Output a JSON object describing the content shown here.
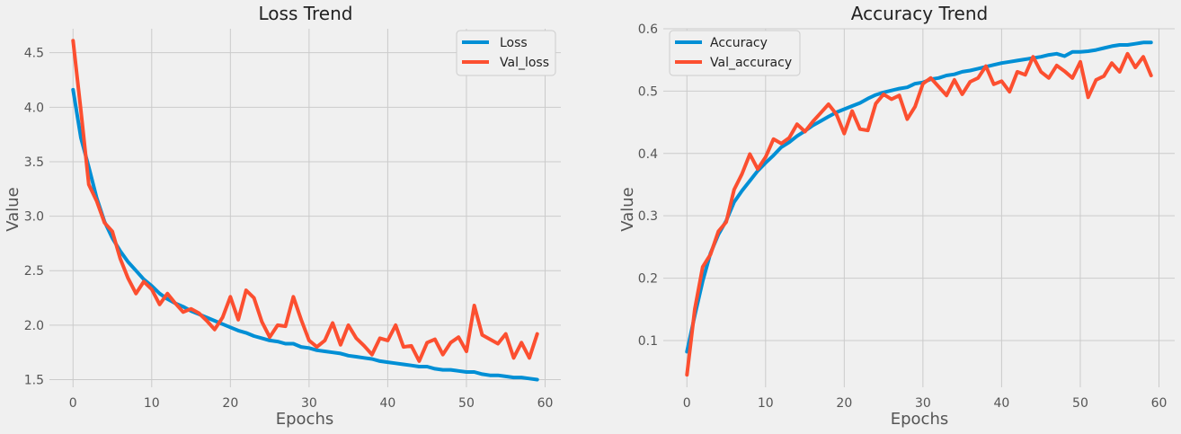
{
  "colors": {
    "series_blue": "#008fd5",
    "series_red": "#fc4f30"
  },
  "chart_data": [
    {
      "type": "line",
      "title": "Loss Trend",
      "xlabel": "Epochs",
      "ylabel": "Value",
      "xlim": [
        -3,
        62
      ],
      "ylim": [
        1.43,
        4.72
      ],
      "xticks": [
        0,
        10,
        20,
        30,
        40,
        50,
        60
      ],
      "yticks": [
        1.5,
        2.0,
        2.5,
        3.0,
        3.5,
        4.0,
        4.5
      ],
      "ytick_labels": [
        "1.5",
        "2.0",
        "2.5",
        "3.0",
        "3.5",
        "4.0",
        "4.5"
      ],
      "grid": true,
      "legend_position": "upper right",
      "x": [
        0,
        1,
        2,
        3,
        4,
        5,
        6,
        7,
        8,
        9,
        10,
        11,
        12,
        13,
        14,
        15,
        16,
        17,
        18,
        19,
        20,
        21,
        22,
        23,
        24,
        25,
        26,
        27,
        28,
        29,
        30,
        31,
        32,
        33,
        34,
        35,
        36,
        37,
        38,
        39,
        40,
        41,
        42,
        43,
        44,
        45,
        46,
        47,
        48,
        49,
        50,
        51,
        52,
        53,
        54,
        55,
        56,
        57,
        58,
        59
      ],
      "series": [
        {
          "name": "Loss",
          "color": "#008fd5",
          "values": [
            4.16,
            3.72,
            3.45,
            3.17,
            2.95,
            2.8,
            2.68,
            2.58,
            2.5,
            2.42,
            2.36,
            2.29,
            2.24,
            2.2,
            2.17,
            2.13,
            2.1,
            2.07,
            2.04,
            2.01,
            1.98,
            1.95,
            1.93,
            1.9,
            1.88,
            1.86,
            1.85,
            1.83,
            1.83,
            1.8,
            1.79,
            1.77,
            1.76,
            1.75,
            1.74,
            1.72,
            1.71,
            1.7,
            1.69,
            1.67,
            1.66,
            1.65,
            1.64,
            1.63,
            1.62,
            1.62,
            1.6,
            1.59,
            1.59,
            1.58,
            1.57,
            1.57,
            1.55,
            1.54,
            1.54,
            1.53,
            1.52,
            1.52,
            1.51,
            1.5
          ]
        },
        {
          "name": "Val_loss",
          "color": "#fc4f30",
          "values": [
            4.61,
            3.97,
            3.29,
            3.14,
            2.94,
            2.86,
            2.61,
            2.43,
            2.29,
            2.4,
            2.33,
            2.19,
            2.29,
            2.2,
            2.12,
            2.15,
            2.11,
            2.04,
            1.96,
            2.07,
            2.26,
            2.05,
            2.32,
            2.25,
            2.03,
            1.89,
            2.0,
            1.99,
            2.26,
            2.05,
            1.86,
            1.8,
            1.86,
            2.02,
            1.82,
            2.0,
            1.88,
            1.81,
            1.73,
            1.88,
            1.86,
            2.0,
            1.8,
            1.81,
            1.67,
            1.84,
            1.87,
            1.73,
            1.84,
            1.89,
            1.76,
            2.18,
            1.91,
            1.87,
            1.83,
            1.92,
            1.7,
            1.84,
            1.7,
            1.92
          ]
        }
      ]
    },
    {
      "type": "line",
      "title": "Accuracy Trend",
      "xlabel": "Epochs",
      "ylabel": "Value",
      "xlim": [
        -3,
        62
      ],
      "ylim": [
        0.025,
        0.6
      ],
      "xticks": [
        0,
        10,
        20,
        30,
        40,
        50,
        60
      ],
      "yticks": [
        0.1,
        0.2,
        0.3,
        0.4,
        0.5,
        0.6
      ],
      "ytick_labels": [
        "0.1",
        "0.2",
        "0.3",
        "0.4",
        "0.5",
        "0.6"
      ],
      "grid": true,
      "legend_position": "upper left",
      "x": [
        0,
        1,
        2,
        3,
        4,
        5,
        6,
        7,
        8,
        9,
        10,
        11,
        12,
        13,
        14,
        15,
        16,
        17,
        18,
        19,
        20,
        21,
        22,
        23,
        24,
        25,
        26,
        27,
        28,
        29,
        30,
        31,
        32,
        33,
        34,
        35,
        36,
        37,
        38,
        39,
        40,
        41,
        42,
        43,
        44,
        45,
        46,
        47,
        48,
        49,
        50,
        51,
        52,
        53,
        54,
        55,
        56,
        57,
        58,
        59
      ],
      "series": [
        {
          "name": "Accuracy",
          "color": "#008fd5",
          "values": [
            0.082,
            0.14,
            0.195,
            0.24,
            0.27,
            0.292,
            0.322,
            0.34,
            0.356,
            0.372,
            0.385,
            0.397,
            0.41,
            0.418,
            0.428,
            0.436,
            0.445,
            0.452,
            0.459,
            0.466,
            0.471,
            0.476,
            0.481,
            0.488,
            0.494,
            0.498,
            0.501,
            0.504,
            0.506,
            0.512,
            0.514,
            0.519,
            0.521,
            0.525,
            0.527,
            0.531,
            0.533,
            0.536,
            0.539,
            0.542,
            0.545,
            0.547,
            0.549,
            0.551,
            0.553,
            0.555,
            0.558,
            0.56,
            0.556,
            0.563,
            0.563,
            0.564,
            0.566,
            0.569,
            0.572,
            0.574,
            0.574,
            0.576,
            0.578,
            0.578
          ]
        },
        {
          "name": "Val_accuracy",
          "color": "#fc4f30",
          "values": [
            0.045,
            0.15,
            0.218,
            0.238,
            0.275,
            0.29,
            0.342,
            0.367,
            0.399,
            0.375,
            0.394,
            0.423,
            0.416,
            0.425,
            0.447,
            0.435,
            0.451,
            0.465,
            0.479,
            0.463,
            0.432,
            0.468,
            0.439,
            0.437,
            0.48,
            0.495,
            0.487,
            0.493,
            0.455,
            0.475,
            0.512,
            0.521,
            0.507,
            0.493,
            0.518,
            0.495,
            0.515,
            0.521,
            0.54,
            0.511,
            0.516,
            0.499,
            0.531,
            0.526,
            0.555,
            0.531,
            0.521,
            0.541,
            0.532,
            0.521,
            0.547,
            0.49,
            0.518,
            0.524,
            0.545,
            0.531,
            0.56,
            0.538,
            0.555,
            0.525
          ]
        }
      ]
    }
  ]
}
